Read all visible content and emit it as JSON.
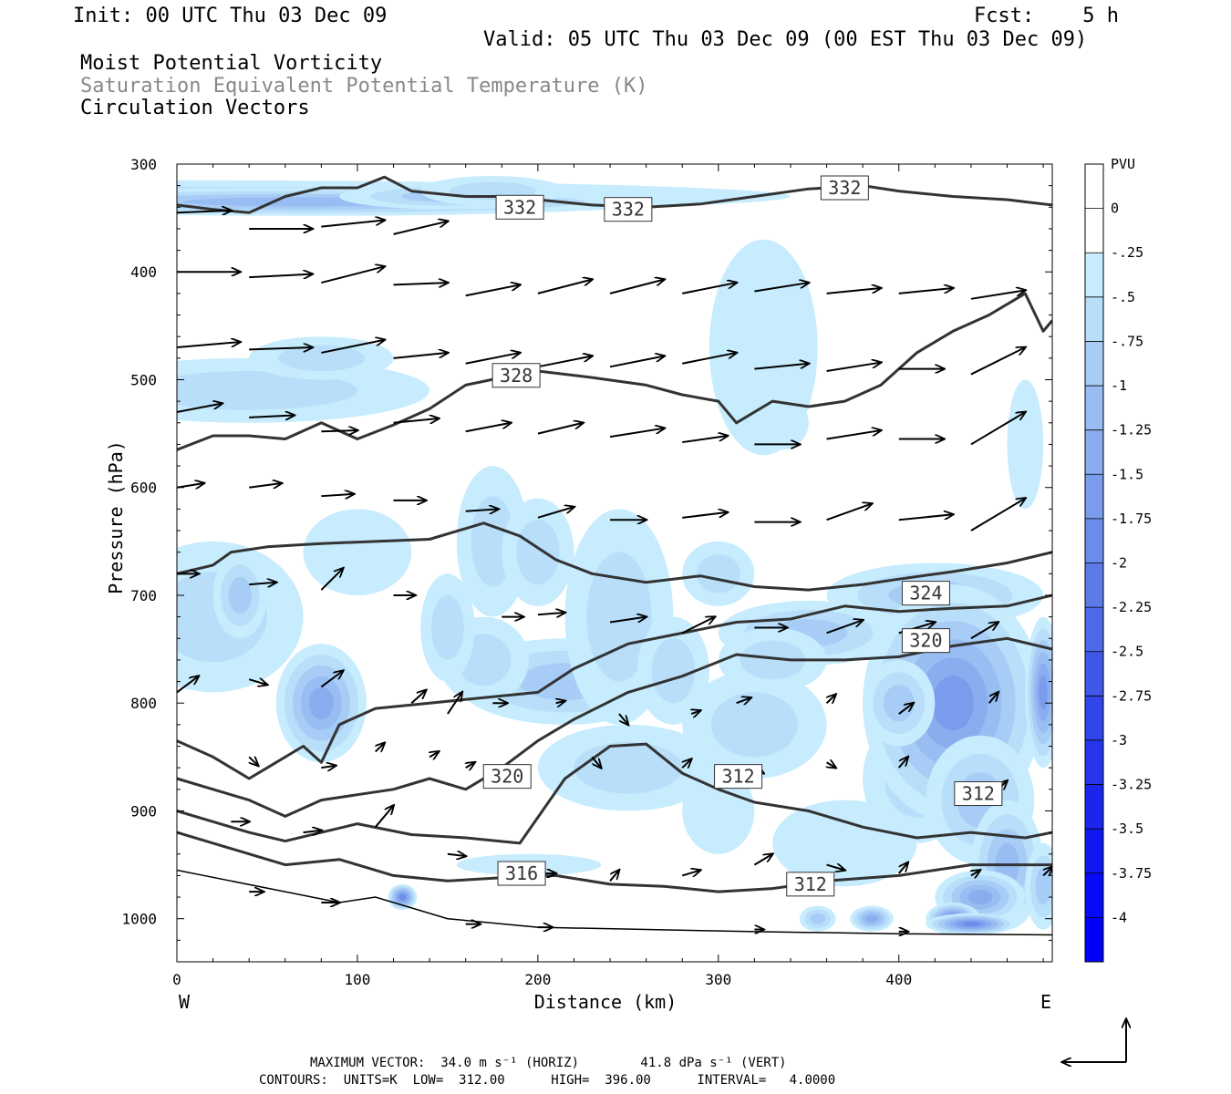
{
  "header": {
    "init": "Init: 00 UTC Thu 03 Dec 09",
    "fcst": "Fcst:    5 h",
    "valid": "Valid: 05 UTC Thu 03 Dec 09 (00 EST Thu 03 Dec 09)",
    "field1": "Moist Potential Vorticity",
    "field2": "Saturation Equivalent Potential Temperature (K)",
    "field3": "Circulation Vectors"
  },
  "footer": {
    "max_vector": "MAXIMUM VECTOR:  34.0 m s⁻¹ (HORIZ)        41.8 dPa s⁻¹ (VERT)",
    "contours": "CONTOURS:  UNITS=K  LOW=  312.00      HIGH=  396.00      INTERVAL=   4.0000"
  },
  "chart_data": {
    "type": "contour cross-section",
    "xlabel": "Distance (km)",
    "ylabel": "Pressure (hPa)",
    "xlim": [
      0,
      485
    ],
    "ylim": [
      1040,
      300
    ],
    "x_ticks": [
      "0",
      "100",
      "200",
      "300",
      "400"
    ],
    "y_ticks": [
      "300",
      "400",
      "500",
      "600",
      "700",
      "800",
      "900",
      "1000"
    ],
    "x_end_labels": [
      "W",
      "E"
    ],
    "colorbar": {
      "title": "PVU",
      "labels": [
        "0",
        "-.25",
        "-.5",
        "-.75",
        "-1",
        "-1.25",
        "-1.5",
        "-1.75",
        "-2",
        "-2.25",
        "-2.5",
        "-2.75",
        "-3",
        "-3.25",
        "-3.5",
        "-3.75",
        "-4"
      ],
      "colors": [
        "#ffffff",
        "#c6ecfd",
        "#b8def9",
        "#a7cdf6",
        "#98bdf3",
        "#8aadef",
        "#7b9cec",
        "#6c8cea",
        "#5d7be8",
        "#4e6ae8",
        "#3f58e9",
        "#3046ea",
        "#2536ec",
        "#1a26ee",
        "#1018f1",
        "#060af5",
        "#0000f8"
      ]
    },
    "contour_labels": [
      "332",
      "332",
      "332",
      "328",
      "324",
      "320",
      "320",
      "316",
      "312",
      "312",
      "312"
    ],
    "theta_e_contours": [
      {
        "label": "332",
        "points": [
          [
            0,
            338
          ],
          [
            20,
            342
          ],
          [
            40,
            345
          ],
          [
            60,
            330
          ],
          [
            80,
            322
          ],
          [
            100,
            322
          ],
          [
            115,
            312
          ],
          [
            130,
            325
          ],
          [
            160,
            330
          ],
          [
            180,
            330
          ],
          [
            200,
            333
          ],
          [
            230,
            338
          ],
          [
            260,
            340
          ],
          [
            290,
            337
          ],
          [
            320,
            330
          ],
          [
            350,
            323
          ],
          [
            380,
            320
          ],
          [
            400,
            325
          ],
          [
            430,
            330
          ],
          [
            460,
            333
          ],
          [
            485,
            338
          ]
        ]
      },
      {
        "label": "328",
        "points": [
          [
            0,
            565
          ],
          [
            20,
            552
          ],
          [
            40,
            552
          ],
          [
            60,
            555
          ],
          [
            80,
            540
          ],
          [
            100,
            555
          ],
          [
            120,
            542
          ],
          [
            140,
            527
          ],
          [
            160,
            505
          ],
          [
            180,
            498
          ],
          [
            200,
            492
          ],
          [
            230,
            498
          ],
          [
            260,
            505
          ],
          [
            280,
            514
          ],
          [
            300,
            520
          ],
          [
            310,
            540
          ],
          [
            330,
            520
          ],
          [
            350,
            525
          ],
          [
            370,
            520
          ],
          [
            390,
            505
          ],
          [
            410,
            475
          ],
          [
            430,
            455
          ],
          [
            450,
            440
          ],
          [
            470,
            420
          ],
          [
            480,
            455
          ],
          [
            485,
            445
          ]
        ]
      },
      {
        "label": "324",
        "points": [
          [
            0,
            680
          ],
          [
            20,
            672
          ],
          [
            30,
            660
          ],
          [
            50,
            655
          ],
          [
            80,
            652
          ],
          [
            110,
            650
          ],
          [
            140,
            648
          ],
          [
            170,
            633
          ],
          [
            190,
            645
          ],
          [
            210,
            667
          ],
          [
            230,
            680
          ],
          [
            260,
            688
          ],
          [
            290,
            682
          ],
          [
            320,
            692
          ],
          [
            350,
            695
          ],
          [
            380,
            690
          ],
          [
            400,
            685
          ],
          [
            430,
            678
          ],
          [
            460,
            670
          ],
          [
            485,
            660
          ]
        ]
      },
      {
        "label": "320",
        "points": [
          [
            0,
            835
          ],
          [
            20,
            850
          ],
          [
            40,
            870
          ],
          [
            50,
            860
          ],
          [
            70,
            840
          ],
          [
            80,
            855
          ],
          [
            90,
            820
          ],
          [
            110,
            805
          ],
          [
            140,
            800
          ],
          [
            170,
            795
          ],
          [
            200,
            790
          ],
          [
            220,
            768
          ],
          [
            250,
            745
          ],
          [
            280,
            735
          ],
          [
            310,
            725
          ],
          [
            340,
            722
          ],
          [
            370,
            710
          ],
          [
            400,
            715
          ],
          [
            430,
            712
          ],
          [
            460,
            710
          ],
          [
            485,
            700
          ]
        ]
      },
      {
        "label": "316",
        "points": [
          [
            0,
            870
          ],
          [
            20,
            880
          ],
          [
            40,
            890
          ],
          [
            60,
            905
          ],
          [
            80,
            890
          ],
          [
            100,
            885
          ],
          [
            120,
            880
          ],
          [
            140,
            870
          ],
          [
            160,
            880
          ],
          [
            180,
            860
          ],
          [
            200,
            835
          ],
          [
            220,
            815
          ],
          [
            250,
            790
          ],
          [
            280,
            775
          ],
          [
            310,
            755
          ],
          [
            340,
            760
          ],
          [
            370,
            760
          ],
          [
            400,
            757
          ],
          [
            430,
            747
          ],
          [
            460,
            740
          ],
          [
            485,
            750
          ]
        ]
      },
      {
        "label": "312",
        "points": [
          [
            0,
            900
          ],
          [
            20,
            910
          ],
          [
            40,
            920
          ],
          [
            60,
            928
          ],
          [
            80,
            920
          ],
          [
            100,
            912
          ],
          [
            130,
            922
          ],
          [
            160,
            925
          ],
          [
            190,
            930
          ],
          [
            215,
            870
          ],
          [
            240,
            840
          ],
          [
            260,
            838
          ],
          [
            280,
            865
          ],
          [
            300,
            880
          ],
          [
            320,
            892
          ],
          [
            350,
            900
          ],
          [
            380,
            915
          ],
          [
            410,
            925
          ],
          [
            440,
            920
          ],
          [
            470,
            925
          ],
          [
            485,
            920
          ]
        ]
      },
      {
        "label": "",
        "points": [
          [
            0,
            920
          ],
          [
            30,
            935
          ],
          [
            60,
            950
          ],
          [
            90,
            945
          ],
          [
            120,
            960
          ],
          [
            150,
            965
          ],
          [
            180,
            962
          ],
          [
            210,
            960
          ],
          [
            240,
            968
          ],
          [
            270,
            970
          ],
          [
            300,
            975
          ],
          [
            330,
            972
          ],
          [
            360,
            965
          ],
          [
            400,
            960
          ],
          [
            440,
            950
          ],
          [
            485,
            950
          ]
        ]
      }
    ]
  }
}
